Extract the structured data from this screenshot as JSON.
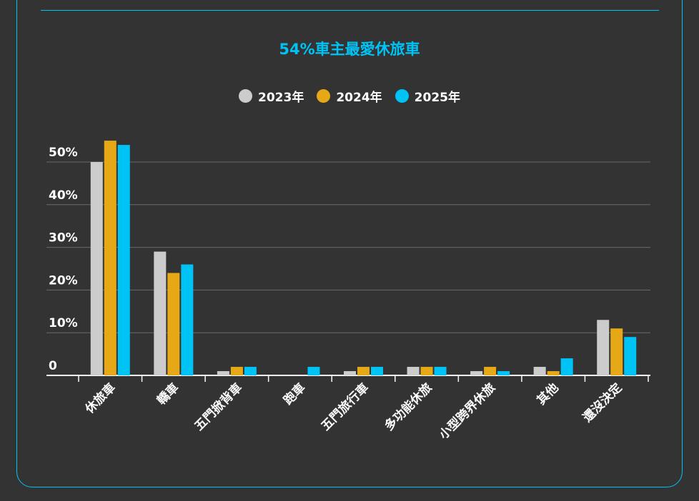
{
  "chart_data": {
    "type": "bar",
    "title": "54%車主最愛休旅車",
    "categories": [
      "休旅車",
      "轎車",
      "五門掀背車",
      "跑車",
      "五門旅行車",
      "多功能休旅",
      "小型跨界休旅",
      "其他",
      "還沒決定"
    ],
    "series": [
      {
        "name": "2023年",
        "color": "#cccccc",
        "values": [
          50,
          29,
          1,
          0,
          1,
          2,
          1,
          2,
          13
        ]
      },
      {
        "name": "2024年",
        "color": "#e6a817",
        "values": [
          55,
          24,
          2,
          0,
          2,
          2,
          2,
          1,
          11
        ]
      },
      {
        "name": "2025年",
        "color": "#00c3f5",
        "values": [
          54,
          26,
          2,
          2,
          2,
          2,
          1,
          4,
          9
        ]
      }
    ],
    "yticks": [
      "0",
      "10%",
      "20%",
      "30%",
      "40%",
      "50%"
    ],
    "ylim": [
      0,
      55
    ],
    "grid": true,
    "legend": "top-center",
    "xlabel": "",
    "ylabel": ""
  }
}
